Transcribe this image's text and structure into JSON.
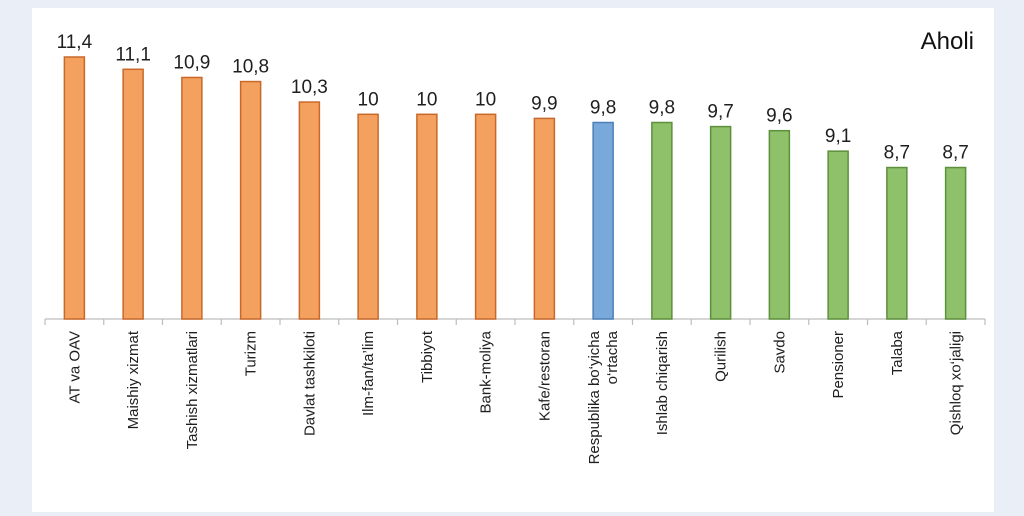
{
  "chart_data": {
    "type": "bar",
    "title": "Aholi",
    "categories": [
      "AT va OAV",
      "Maishiy xizmat",
      "Tashish xizmatlari",
      "Turizm",
      "Davlat tashkiloti",
      "Ilm-fan/ta’lim",
      "Tibbiyot",
      "Bank-moliya",
      "Kafe/restoran",
      "Respublika bo‘yicha o‘rtacha",
      "Ishlab chiqarish",
      "Qurilish",
      "Savdo",
      "Pensioner",
      "Talaba",
      "Qishloq xo‘jaligi"
    ],
    "category_lines": [
      [
        "AT va OAV"
      ],
      [
        "Maishiy xizmat"
      ],
      [
        "Tashish xizmatlari"
      ],
      [
        "Turizm"
      ],
      [
        "Davlat tashkiloti"
      ],
      [
        "Ilm-fan/ta’lim"
      ],
      [
        "Tibbiyot"
      ],
      [
        "Bank-moliya"
      ],
      [
        "Kafe/restoran"
      ],
      [
        "Respublika bo‘yicha",
        "o‘rtacha"
      ],
      [
        "Ishlab chiqarish"
      ],
      [
        "Qurilish"
      ],
      [
        "Savdo"
      ],
      [
        "Pensioner"
      ],
      [
        "Talaba"
      ],
      [
        "Qishloq xo‘jaligi"
      ]
    ],
    "values": [
      11.4,
      11.1,
      10.9,
      10.8,
      10.3,
      10,
      10,
      10,
      9.9,
      9.8,
      9.8,
      9.7,
      9.6,
      9.1,
      8.7,
      8.7
    ],
    "value_labels": [
      "11,4",
      "11,1",
      "10,9",
      "10,8",
      "10,3",
      "10",
      "10",
      "10",
      "9,9",
      "9,8",
      "9,8",
      "9,7",
      "9,6",
      "9,1",
      "8,7",
      "8,7"
    ],
    "colors": [
      "#f4a05f",
      "#f4a05f",
      "#f4a05f",
      "#f4a05f",
      "#f4a05f",
      "#f4a05f",
      "#f4a05f",
      "#f4a05f",
      "#f4a05f",
      "#79a8db",
      "#8fc16a",
      "#8fc16a",
      "#8fc16a",
      "#8fc16a",
      "#8fc16a",
      "#8fc16a"
    ],
    "bar_edge_colors": [
      "#c8692a",
      "#c8692a",
      "#c8692a",
      "#c8692a",
      "#c8692a",
      "#c8692a",
      "#c8692a",
      "#c8692a",
      "#c8692a",
      "#4f7fb8",
      "#5d8f3d",
      "#5d8f3d",
      "#5d8f3d",
      "#5d8f3d",
      "#5d8f3d",
      "#5d8f3d"
    ],
    "ylim": [
      5,
      11.4
    ],
    "grid": false,
    "legend": "none"
  }
}
